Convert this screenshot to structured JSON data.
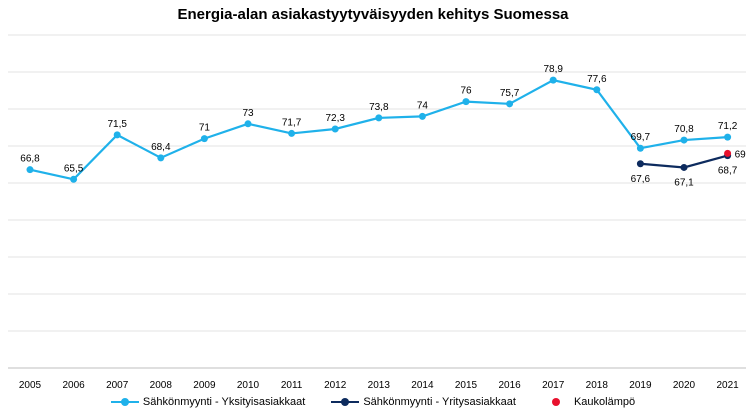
{
  "chart_data": {
    "type": "line",
    "title": "Energia-alan asiakastyytyväisyyden kehitys Suomessa",
    "categories": [
      "2005",
      "2006",
      "2007",
      "2008",
      "2009",
      "2010",
      "2011",
      "2012",
      "2013",
      "2014",
      "2015",
      "2016",
      "2017",
      "2018",
      "2019",
      "2020",
      "2021"
    ],
    "ylim": [
      40,
      85
    ],
    "grid": true,
    "legend": "bottom",
    "series": [
      {
        "name": "Sähkönmyynti - Yksityisasiakkaat",
        "color": "#1fb1ea",
        "values": [
          66.8,
          65.5,
          71.5,
          68.4,
          71,
          73,
          71.7,
          72.3,
          73.8,
          74,
          76,
          75.7,
          78.9,
          77.6,
          69.7,
          70.8,
          71.2
        ],
        "labels": [
          "66,8",
          "65,5",
          "71,5",
          "68,4",
          "71",
          "73",
          "71,7",
          "72,3",
          "73,8",
          "74",
          "76",
          "75,7",
          "78,9",
          "77,6",
          "69,7",
          "70,8",
          "71,2"
        ]
      },
      {
        "name": "Sähkönmyynti - Yritysasiakkaat",
        "color": "#0d2b5e",
        "values": [
          null,
          null,
          null,
          null,
          null,
          null,
          null,
          null,
          null,
          null,
          null,
          null,
          null,
          null,
          67.6,
          67.1,
          68.7
        ],
        "labels": [
          "",
          "",
          "",
          "",
          "",
          "",
          "",
          "",
          "",
          "",
          "",
          "",
          "",
          "",
          "67,6",
          "67,1",
          "68,7"
        ]
      },
      {
        "name": "Kaukolämpö",
        "color": "#e8112d",
        "values": [
          null,
          null,
          null,
          null,
          null,
          null,
          null,
          null,
          null,
          null,
          null,
          null,
          null,
          null,
          null,
          null,
          69
        ],
        "labels": [
          "",
          "",
          "",
          "",
          "",
          "",
          "",
          "",
          "",
          "",
          "",
          "",
          "",
          "",
          "",
          "",
          "69"
        ]
      }
    ]
  }
}
